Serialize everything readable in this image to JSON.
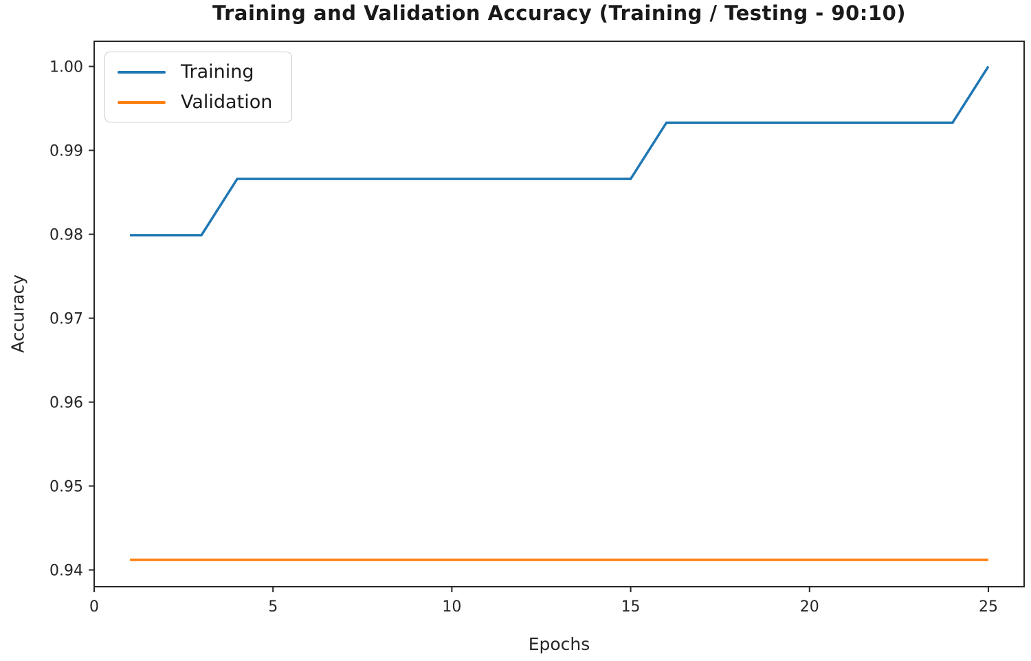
{
  "chart_data": {
    "type": "line",
    "title": "Training and Validation Accuracy (Training / Testing - 90:10)",
    "xlabel": "Epochs",
    "ylabel": "Accuracy",
    "x": [
      1,
      2,
      3,
      4,
      5,
      6,
      7,
      8,
      9,
      10,
      11,
      12,
      13,
      14,
      15,
      16,
      17,
      18,
      19,
      20,
      21,
      22,
      23,
      24,
      25
    ],
    "series": [
      {
        "name": "Training",
        "color": "#1f77b4",
        "values": [
          0.9799,
          0.9799,
          0.9799,
          0.9866,
          0.9866,
          0.9866,
          0.9866,
          0.9866,
          0.9866,
          0.9866,
          0.9866,
          0.9866,
          0.9866,
          0.9866,
          0.9866,
          0.9933,
          0.9933,
          0.9933,
          0.9933,
          0.9933,
          0.9933,
          0.9933,
          0.9933,
          0.9933,
          1.0
        ]
      },
      {
        "name": "Validation",
        "color": "#ff7f0e",
        "values": [
          0.9412,
          0.9412,
          0.9412,
          0.9412,
          0.9412,
          0.9412,
          0.9412,
          0.9412,
          0.9412,
          0.9412,
          0.9412,
          0.9412,
          0.9412,
          0.9412,
          0.9412,
          0.9412,
          0.9412,
          0.9412,
          0.9412,
          0.9412,
          0.9412,
          0.9412,
          0.9412,
          0.9412,
          0.9412
        ]
      }
    ],
    "xlim": [
      0,
      26
    ],
    "ylim": [
      0.938,
      1.003
    ],
    "xticks": [
      0,
      5,
      10,
      15,
      20,
      25
    ],
    "xtick_labels": [
      "0",
      "5",
      "10",
      "15",
      "20",
      "25"
    ],
    "yticks": [
      1.0,
      0.99,
      0.98,
      0.97,
      0.96,
      0.95,
      0.94
    ],
    "ytick_labels": [
      "1.00",
      "0.99",
      "0.98",
      "0.97",
      "0.96",
      "0.95",
      "0.94"
    ],
    "grid": false,
    "legend_position": "upper left",
    "axis_color": "#262626",
    "background": "#ffffff"
  }
}
